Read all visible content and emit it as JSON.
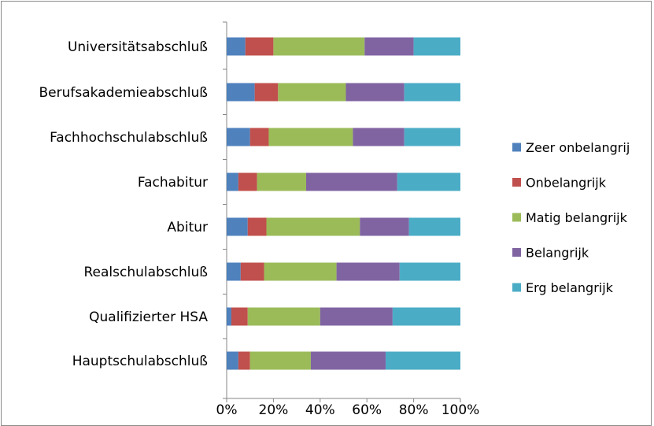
{
  "chart_data": {
    "type": "bar",
    "orientation": "horizontal",
    "stacking": "percent",
    "categories": [
      "Universitätsabschluß",
      "Berufsakademieabschluß",
      "Fachhochschulabschluß",
      "Fachabitur",
      "Abitur",
      "Realschulabschluß",
      "Qualifizierter HSA",
      "Hauptschulabschluß"
    ],
    "series": [
      {
        "name": "Zeer onbelangrij",
        "color": "#4F81BD",
        "values": [
          8,
          12,
          10,
          5,
          9,
          6,
          2,
          5
        ]
      },
      {
        "name": "Onbelangrijk",
        "color": "#C0504D",
        "values": [
          12,
          10,
          8,
          8,
          8,
          10,
          7,
          5
        ]
      },
      {
        "name": "Matig belangrijk",
        "color": "#9BBB59",
        "values": [
          39,
          29,
          36,
          21,
          40,
          31,
          31,
          26
        ]
      },
      {
        "name": "Belangrijk",
        "color": "#8064A2",
        "values": [
          21,
          25,
          22,
          39,
          21,
          27,
          31,
          32
        ]
      },
      {
        "name": "Erg belangrijk",
        "color": "#4BACC6",
        "values": [
          20,
          24,
          24,
          27,
          22,
          26,
          29,
          32
        ]
      }
    ],
    "x_ticks": [
      "0%",
      "20%",
      "40%",
      "60%",
      "80%",
      "100%"
    ],
    "xlim": [
      0,
      100
    ],
    "legend_position": "right",
    "grid": false,
    "title": "",
    "xlabel": "",
    "ylabel": ""
  }
}
